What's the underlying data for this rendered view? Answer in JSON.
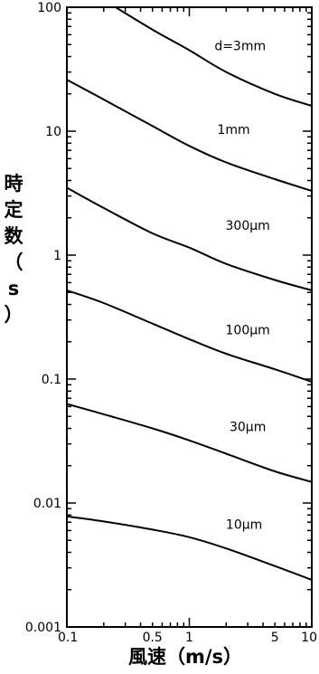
{
  "chart_data": {
    "type": "line",
    "xlabel": "風速（m/s）",
    "ylabel": "時定数（s）",
    "x_scale": "log",
    "y_scale": "log",
    "xlim": [
      0.1,
      10
    ],
    "ylim": [
      0.001,
      100
    ],
    "x_ticks": [
      {
        "value": 0.1,
        "label": "0.1"
      },
      {
        "value": 0.5,
        "label": "0.5"
      },
      {
        "value": 1,
        "label": "1"
      },
      {
        "value": 5,
        "label": "5"
      },
      {
        "value": 10,
        "label": "10"
      }
    ],
    "y_ticks": [
      {
        "value": 100,
        "label": "100"
      },
      {
        "value": 10,
        "label": "10"
      },
      {
        "value": 1,
        "label": "1"
      },
      {
        "value": 0.1,
        "label": "0.1"
      },
      {
        "value": 0.01,
        "label": "0.01"
      },
      {
        "value": 0.001,
        "label": "0.001"
      }
    ],
    "grid": false,
    "series": [
      {
        "name": "d=3mm",
        "label_at": [
          2.6,
          45
        ],
        "points": [
          [
            0.25,
            100
          ],
          [
            0.5,
            66
          ],
          [
            1,
            45
          ],
          [
            2,
            30
          ],
          [
            5,
            20
          ],
          [
            10,
            16
          ]
        ]
      },
      {
        "name": "1mm",
        "label_at": [
          2.3,
          9.5
        ],
        "points": [
          [
            0.1,
            26
          ],
          [
            0.2,
            18
          ],
          [
            0.5,
            11
          ],
          [
            1,
            7.6
          ],
          [
            2,
            5.6
          ],
          [
            5,
            4.1
          ],
          [
            10,
            3.3
          ]
        ]
      },
      {
        "name": "300μm",
        "label_at": [
          3.0,
          1.6
        ],
        "points": [
          [
            0.1,
            3.5
          ],
          [
            0.2,
            2.4
          ],
          [
            0.5,
            1.5
          ],
          [
            1,
            1.15
          ],
          [
            2,
            0.85
          ],
          [
            5,
            0.63
          ],
          [
            10,
            0.52
          ]
        ]
      },
      {
        "name": "100μm",
        "label_at": [
          3.0,
          0.23
        ],
        "points": [
          [
            0.1,
            0.52
          ],
          [
            0.2,
            0.41
          ],
          [
            0.5,
            0.28
          ],
          [
            1,
            0.21
          ],
          [
            2,
            0.16
          ],
          [
            5,
            0.12
          ],
          [
            10,
            0.095
          ]
        ]
      },
      {
        "name": "30μm",
        "label_at": [
          3.0,
          0.038
        ],
        "points": [
          [
            0.1,
            0.063
          ],
          [
            0.2,
            0.052
          ],
          [
            0.5,
            0.04
          ],
          [
            1,
            0.032
          ],
          [
            2,
            0.025
          ],
          [
            5,
            0.018
          ],
          [
            10,
            0.0148
          ]
        ]
      },
      {
        "name": "10μm",
        "label_at": [
          2.8,
          0.0062
        ],
        "points": [
          [
            0.1,
            0.0078
          ],
          [
            0.2,
            0.0071
          ],
          [
            0.5,
            0.0061
          ],
          [
            1,
            0.0053
          ],
          [
            2,
            0.0043
          ],
          [
            5,
            0.0031
          ],
          [
            10,
            0.0024
          ]
        ]
      }
    ]
  }
}
